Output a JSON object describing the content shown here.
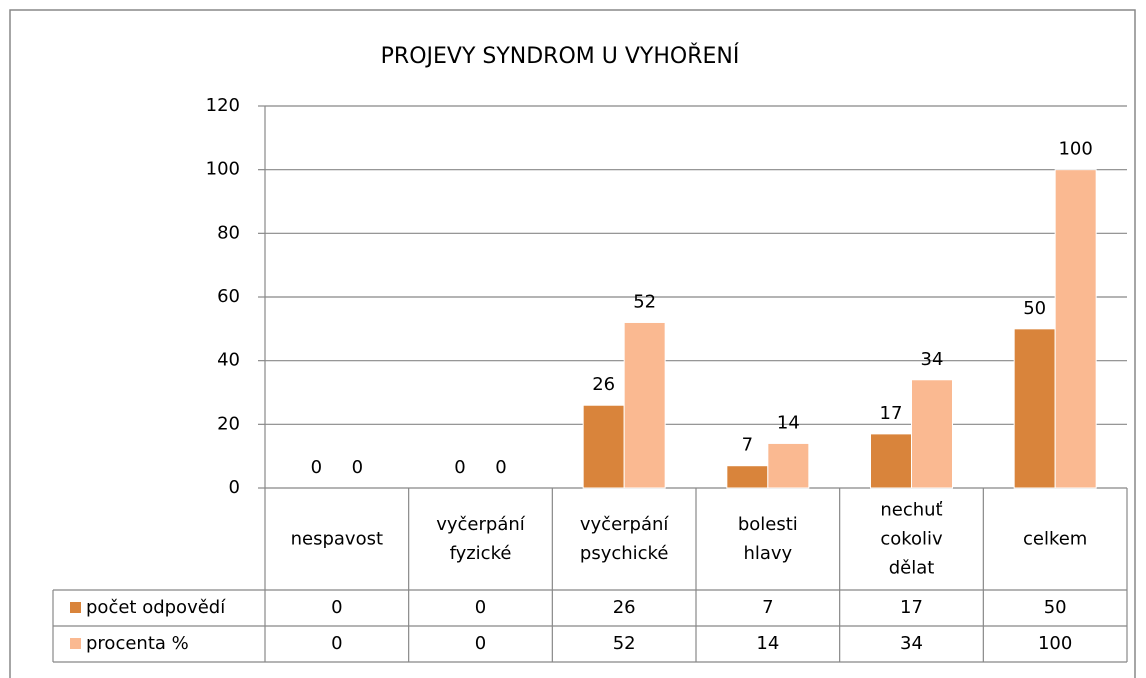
{
  "chart_data": {
    "type": "bar",
    "title": "PROJEVY SYNDROM U VYHOŘENÍ",
    "categories": [
      "nespavost",
      "vyčerpání fyzické",
      "vyčerpání psychické",
      "bolesti hlavy",
      "nechuť cokoliv dělat",
      "celkem"
    ],
    "series": [
      {
        "name": "počet odpovědí",
        "color": "#d9843b",
        "values": [
          0,
          0,
          26,
          7,
          17,
          50
        ]
      },
      {
        "name": "procenta %",
        "color": "#fab991",
        "values": [
          0,
          0,
          52,
          14,
          34,
          100
        ]
      }
    ],
    "ylim": [
      0,
      120
    ],
    "yticks": [
      0,
      20,
      40,
      60,
      80,
      100,
      120
    ],
    "grid": true,
    "data_table": true
  }
}
